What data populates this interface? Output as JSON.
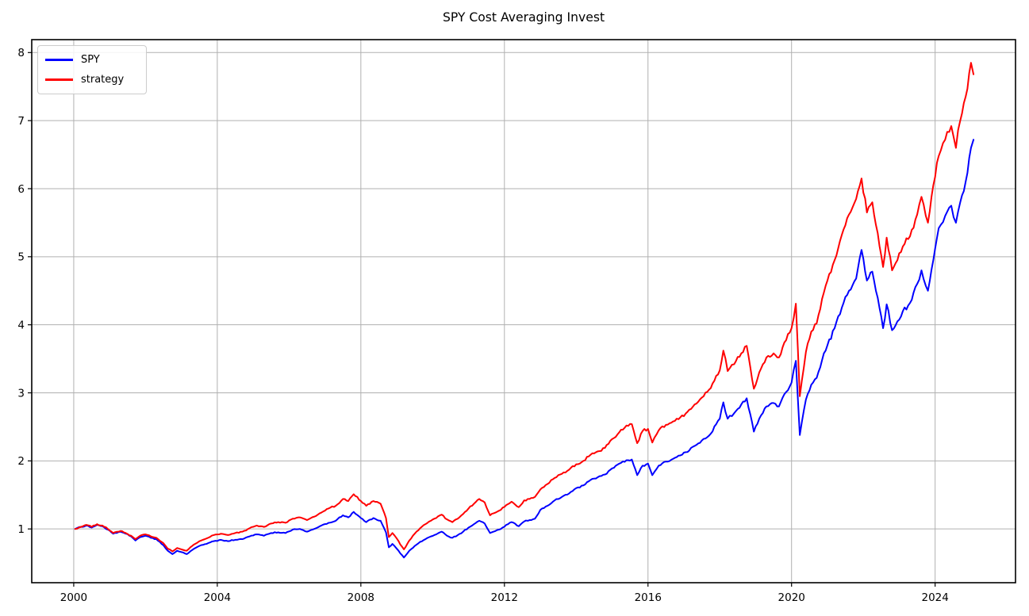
{
  "figure": {
    "title": "SPY Cost Averaging Invest",
    "background_color": "#ffffff"
  },
  "legend": {
    "position": "upper left",
    "entries": [
      {
        "label": "SPY",
        "color": "#0000ff"
      },
      {
        "label": "strategy",
        "color": "#ff0000"
      }
    ]
  },
  "chart_data": {
    "type": "line",
    "title": "SPY Cost Averaging Invest",
    "xlabel": "",
    "ylabel": "",
    "x_ticks": [
      2000,
      2004,
      2008,
      2012,
      2016,
      2020,
      2024
    ],
    "y_ticks": [
      1,
      2,
      3,
      4,
      5,
      6,
      7,
      8
    ],
    "xlim": [
      1998.83,
      2026.24
    ],
    "ylim": [
      0.21,
      8.19
    ],
    "grid": true,
    "grid_color": "#b0b0b0",
    "spine_color": "#000000",
    "legend_position": "upper left",
    "x": [
      2000.04,
      2000.2,
      2000.35,
      2000.5,
      2000.65,
      2000.8,
      2000.95,
      2001.1,
      2001.3,
      2001.45,
      2001.6,
      2001.72,
      2001.85,
      2002.0,
      2002.15,
      2002.3,
      2002.5,
      2002.62,
      2002.75,
      2002.88,
      2003.0,
      2003.15,
      2003.3,
      2003.5,
      2003.7,
      2003.9,
      2004.1,
      2004.3,
      2004.5,
      2004.7,
      2004.9,
      2005.1,
      2005.3,
      2005.5,
      2005.7,
      2005.9,
      2006.1,
      2006.3,
      2006.5,
      2006.7,
      2006.9,
      2007.1,
      2007.3,
      2007.5,
      2007.65,
      2007.8,
      2008.0,
      2008.15,
      2008.35,
      2008.55,
      2008.7,
      2008.78,
      2008.88,
      2009.0,
      2009.1,
      2009.2,
      2009.35,
      2009.5,
      2009.65,
      2009.8,
      2009.95,
      2010.1,
      2010.25,
      2010.4,
      2010.55,
      2010.7,
      2010.85,
      2011.0,
      2011.15,
      2011.3,
      2011.45,
      2011.6,
      2011.75,
      2011.9,
      2012.05,
      2012.2,
      2012.4,
      2012.55,
      2012.7,
      2012.85,
      2013.0,
      2013.2,
      2013.4,
      2013.6,
      2013.8,
      2014.0,
      2014.2,
      2014.4,
      2014.6,
      2014.8,
      2015.0,
      2015.2,
      2015.4,
      2015.55,
      2015.7,
      2015.85,
      2016.0,
      2016.12,
      2016.3,
      2016.5,
      2016.7,
      2016.9,
      2017.1,
      2017.3,
      2017.5,
      2017.75,
      2018.0,
      2018.1,
      2018.22,
      2018.4,
      2018.6,
      2018.75,
      2018.95,
      2019.1,
      2019.3,
      2019.5,
      2019.65,
      2019.8,
      2020.0,
      2020.12,
      2020.23,
      2020.4,
      2020.55,
      2020.7,
      2020.85,
      2021.0,
      2021.2,
      2021.4,
      2021.6,
      2021.8,
      2021.95,
      2022.1,
      2022.25,
      2022.4,
      2022.55,
      2022.65,
      2022.8,
      2022.95,
      2023.1,
      2023.3,
      2023.5,
      2023.62,
      2023.8,
      2023.95,
      2024.1,
      2024.28,
      2024.45,
      2024.58,
      2024.7,
      2024.85,
      2025.0,
      2025.07
    ],
    "series": [
      {
        "name": "SPY",
        "color": "#0000ff",
        "values": [
          1.0,
          1.03,
          1.05,
          1.02,
          1.06,
          1.04,
          0.99,
          0.93,
          0.96,
          0.93,
          0.89,
          0.83,
          0.88,
          0.9,
          0.87,
          0.85,
          0.76,
          0.68,
          0.63,
          0.68,
          0.66,
          0.63,
          0.69,
          0.75,
          0.78,
          0.82,
          0.84,
          0.82,
          0.84,
          0.85,
          0.89,
          0.92,
          0.9,
          0.94,
          0.95,
          0.94,
          0.99,
          1.0,
          0.96,
          1.0,
          1.05,
          1.09,
          1.12,
          1.2,
          1.17,
          1.25,
          1.16,
          1.1,
          1.16,
          1.12,
          0.95,
          0.73,
          0.78,
          0.71,
          0.64,
          0.58,
          0.68,
          0.75,
          0.81,
          0.85,
          0.89,
          0.92,
          0.96,
          0.9,
          0.87,
          0.91,
          0.96,
          1.02,
          1.07,
          1.12,
          1.08,
          0.94,
          0.97,
          1.0,
          1.06,
          1.1,
          1.04,
          1.11,
          1.13,
          1.15,
          1.28,
          1.34,
          1.42,
          1.47,
          1.52,
          1.6,
          1.64,
          1.72,
          1.76,
          1.8,
          1.89,
          1.96,
          2.01,
          2.02,
          1.79,
          1.93,
          1.96,
          1.79,
          1.93,
          1.99,
          2.03,
          2.08,
          2.13,
          2.22,
          2.3,
          2.4,
          2.62,
          2.86,
          2.62,
          2.7,
          2.83,
          2.92,
          2.43,
          2.62,
          2.8,
          2.85,
          2.8,
          2.98,
          3.15,
          3.47,
          2.38,
          2.9,
          3.12,
          3.22,
          3.48,
          3.7,
          3.95,
          4.25,
          4.5,
          4.68,
          5.1,
          4.65,
          4.78,
          4.4,
          3.95,
          4.3,
          3.92,
          4.05,
          4.2,
          4.32,
          4.6,
          4.8,
          4.5,
          4.95,
          5.42,
          5.6,
          5.75,
          5.5,
          5.8,
          6.1,
          6.6,
          6.72
        ]
      },
      {
        "name": "strategy",
        "color": "#ff0000",
        "values": [
          1.0,
          1.03,
          1.06,
          1.03,
          1.07,
          1.05,
          1.0,
          0.94,
          0.97,
          0.94,
          0.9,
          0.85,
          0.9,
          0.92,
          0.89,
          0.87,
          0.79,
          0.71,
          0.67,
          0.72,
          0.7,
          0.68,
          0.75,
          0.82,
          0.86,
          0.91,
          0.93,
          0.91,
          0.94,
          0.96,
          1.01,
          1.05,
          1.03,
          1.08,
          1.1,
          1.09,
          1.15,
          1.17,
          1.13,
          1.18,
          1.24,
          1.3,
          1.34,
          1.44,
          1.41,
          1.51,
          1.41,
          1.34,
          1.41,
          1.37,
          1.16,
          0.88,
          0.94,
          0.86,
          0.77,
          0.7,
          0.83,
          0.93,
          1.01,
          1.07,
          1.12,
          1.16,
          1.21,
          1.14,
          1.1,
          1.15,
          1.22,
          1.3,
          1.37,
          1.44,
          1.39,
          1.2,
          1.24,
          1.28,
          1.35,
          1.4,
          1.32,
          1.42,
          1.44,
          1.47,
          1.58,
          1.66,
          1.75,
          1.81,
          1.87,
          1.95,
          2.0,
          2.09,
          2.14,
          2.19,
          2.32,
          2.42,
          2.52,
          2.54,
          2.26,
          2.44,
          2.47,
          2.27,
          2.45,
          2.53,
          2.58,
          2.64,
          2.72,
          2.83,
          2.93,
          3.07,
          3.33,
          3.62,
          3.32,
          3.42,
          3.58,
          3.69,
          3.06,
          3.3,
          3.52,
          3.58,
          3.52,
          3.74,
          3.95,
          4.31,
          2.95,
          3.6,
          3.9,
          4.02,
          4.38,
          4.65,
          4.95,
          5.32,
          5.62,
          5.85,
          6.15,
          5.65,
          5.8,
          5.35,
          4.85,
          5.28,
          4.8,
          4.95,
          5.15,
          5.3,
          5.62,
          5.88,
          5.5,
          6.05,
          6.48,
          6.72,
          6.92,
          6.6,
          7.0,
          7.35,
          7.85,
          7.68
        ]
      }
    ]
  }
}
